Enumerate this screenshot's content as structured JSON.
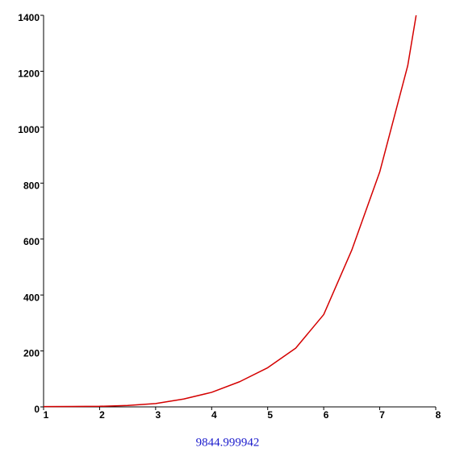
{
  "chart_data": {
    "type": "line",
    "x": [
      1,
      1.5,
      2,
      2.5,
      3,
      3.5,
      4,
      4.5,
      5,
      5.5,
      6,
      6.5,
      7,
      7.5,
      7.65
    ],
    "series": [
      {
        "color": "#d40000",
        "values": [
          1,
          1.5,
          2,
          5,
          12,
          28,
          52,
          90,
          140,
          210,
          330,
          560,
          840,
          1220,
          1400
        ]
      }
    ],
    "xlim": [
      1,
      8
    ],
    "xticks": [
      1,
      2,
      3,
      4,
      5,
      6,
      7,
      8
    ],
    "ylim": [
      0,
      1400
    ],
    "yticks": [
      0,
      200,
      400,
      600,
      800,
      1000,
      1200,
      1400
    ]
  },
  "output": "9844.999942"
}
